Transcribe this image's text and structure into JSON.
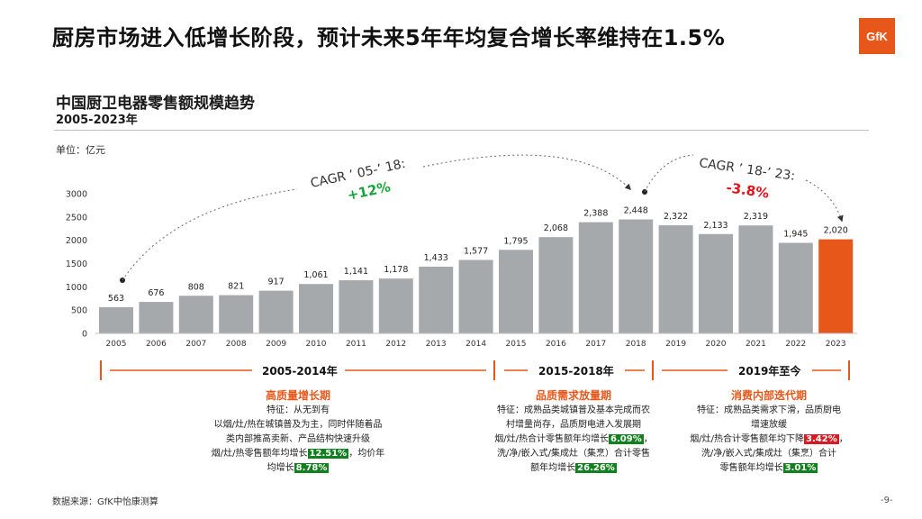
{
  "headline": "厨房市场进入低增长阶段，预计未来5年年均复合增长率维持在1.5%",
  "logo_text": "GfK",
  "chart_title": "中国厨卫电器零售额规模趋势",
  "chart_subtitle": "2005-2023年",
  "unit_label": "单位：亿元",
  "colors": {
    "bar": "#a6a9ab",
    "highlight_bar": "#e8571a",
    "accent": "#e8571a",
    "up": "#1aa33a",
    "down": "#e0141c"
  },
  "chart_data": {
    "type": "bar",
    "categories": [
      "2005",
      "2006",
      "2007",
      "2008",
      "2009",
      "2010",
      "2011",
      "2012",
      "2013",
      "2014",
      "2015",
      "2016",
      "2017",
      "2018",
      "2019",
      "2020",
      "2021",
      "2022",
      "2023"
    ],
    "values": [
      563,
      676,
      808,
      821,
      917,
      1061,
      1141,
      1178,
      1433,
      1577,
      1795,
      2068,
      2388,
      2448,
      2322,
      2133,
      2319,
      1945,
      2020
    ],
    "data_labels": [
      "563",
      "676",
      "808",
      "821",
      "917",
      "1,061",
      "1,141",
      "1,178",
      "1,433",
      "1,577",
      "1,795",
      "2,068",
      "2,388",
      "2,448",
      "2,322",
      "2,133",
      "2,319",
      "1,945",
      "2,020"
    ],
    "highlight_category": "2023",
    "ylim": [
      0,
      3000
    ],
    "yticks": [
      "0",
      "500",
      "1000",
      "1500",
      "2000",
      "2500",
      "3000"
    ],
    "grid": false,
    "annotations": [
      {
        "text": "CAGR ’ 05-’ 18:",
        "value": "+12%",
        "from": "2005",
        "to": "2018",
        "direction": "up"
      },
      {
        "text": "CAGR ’ 18-’ 23:",
        "value": "-3.8%",
        "from": "2018",
        "to": "2023",
        "direction": "down"
      }
    ]
  },
  "periods": [
    {
      "range": "2005-2014年",
      "title": "高质量增长期",
      "lines": [
        "特征：从无到有",
        "以烟/灶/热在城镇普及为主，同时伴随着品",
        "类内部推高卖新、产品结构快速升级"
      ],
      "l4_pre": "烟/灶/热零售额年均增长",
      "l4_hl": "12.51%",
      "l4_post": "，均价年",
      "l5_pre": "均增长",
      "l5_hl": "8.78%"
    },
    {
      "range": "2015-2018年",
      "title": "品质需求放量期",
      "lines": [
        "特征：成熟品类城镇普及基本完成而农",
        "村增量尚存，品质厨电进入发展期"
      ],
      "l3_pre": "烟/灶/热合计零售额年均增长",
      "l3_hl": "6.09%",
      "l3_post": "，",
      "l4": "洗/净/嵌入式/集成灶（集烹）合计零售",
      "l5_pre": "额年均增长",
      "l5_hl": "26.26%"
    },
    {
      "range": "2019年至今",
      "title": "消费内部迭代期",
      "lines": [
        "特征：成熟品类需求下滑，品质厨电",
        "增速放缓"
      ],
      "l3_pre": "烟/灶/热合计零售额年均下降",
      "l3_hl": "3.42%",
      "l3_post": "，",
      "l4": "洗/净/嵌入式/集成灶（集烹）合计",
      "l5_pre": "零售额年均增长",
      "l5_hl": "3.01%"
    }
  ],
  "source": "数据来源：GfK中怡康测算",
  "page_number": "-9-"
}
